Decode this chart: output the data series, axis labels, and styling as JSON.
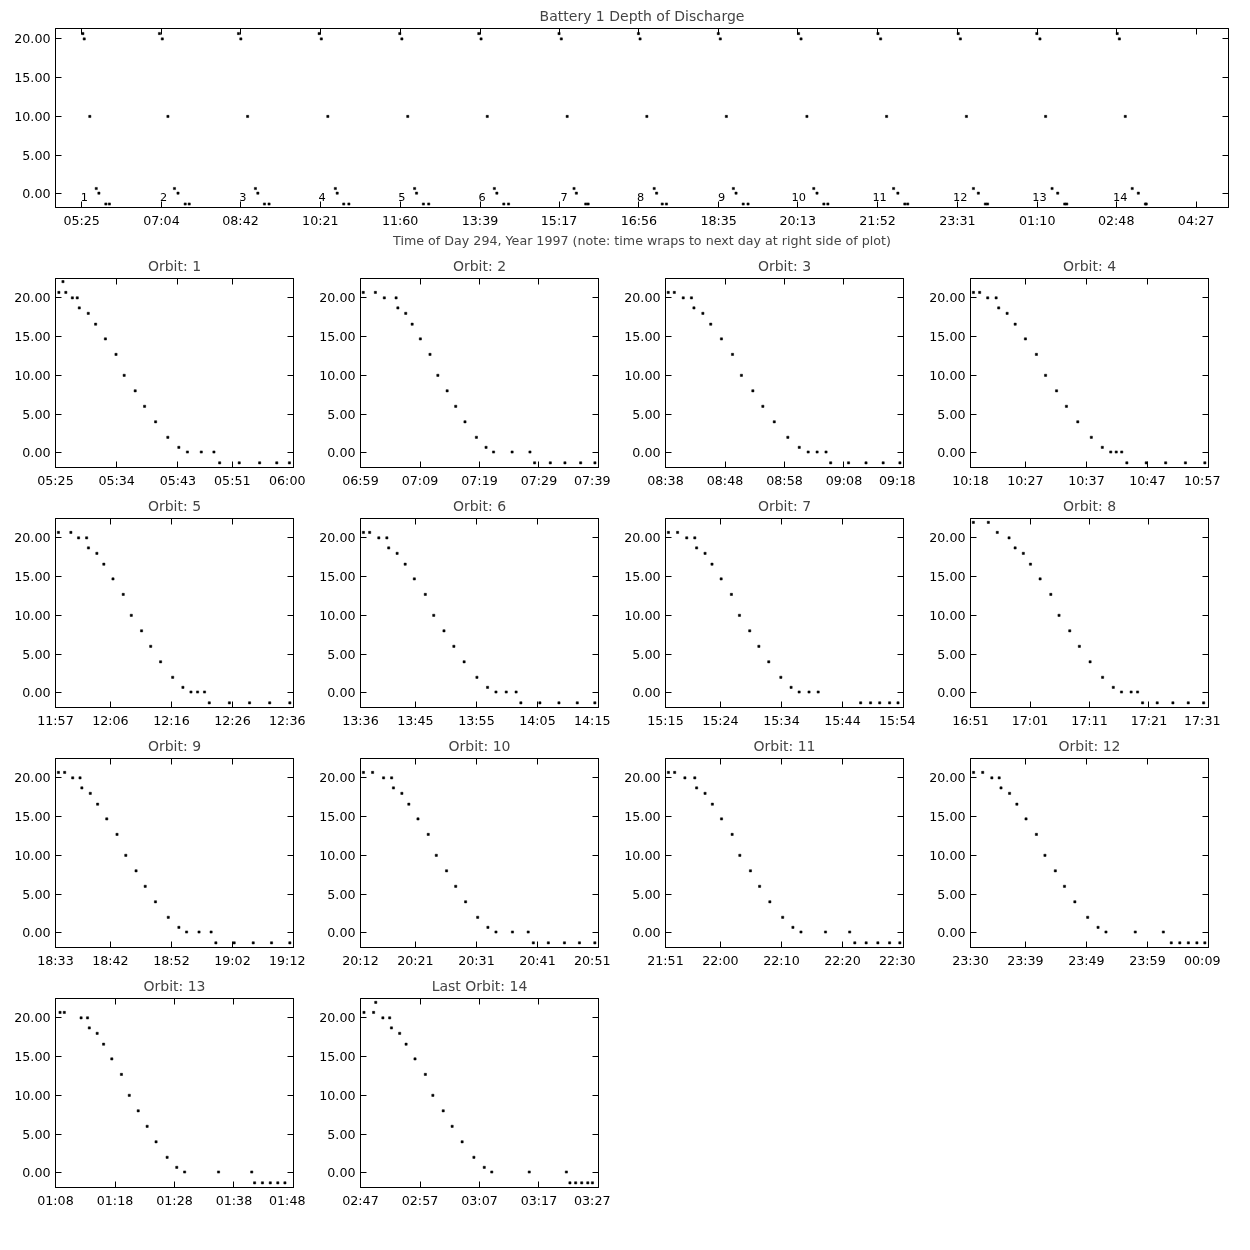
{
  "chart_data": [
    {
      "type": "scatter",
      "title": "Battery 1 Depth of Discharge",
      "xlabel": "Time of Day 294, Year 1997 (note: time wraps to next day at right side of plot)",
      "color": "#000000",
      "marker": "square",
      "xlim": [
        "1997-10-21T04:52:34",
        "1997-10-22T05:07:12"
      ],
      "ylim": [
        -1.75,
        21.35
      ],
      "xticks": [
        {
          "value": "1997-10-21T05:25",
          "label": "05:25"
        },
        {
          "value": "1997-10-21T07:04",
          "label": "07:04"
        },
        {
          "value": "1997-10-21T08:42",
          "label": "08:42"
        },
        {
          "value": "1997-10-21T10:21",
          "label": "10:21"
        },
        {
          "value": "1997-10-21T12:00",
          "label": "11:60"
        },
        {
          "value": "1997-10-21T13:39",
          "label": "13:39"
        },
        {
          "value": "1997-10-21T15:17",
          "label": "15:17"
        },
        {
          "value": "1997-10-21T16:56",
          "label": "16:56"
        },
        {
          "value": "1997-10-21T18:35",
          "label": "18:35"
        },
        {
          "value": "1997-10-21T20:13",
          "label": "20:13"
        },
        {
          "value": "1997-10-21T21:52",
          "label": "21:52"
        },
        {
          "value": "1997-10-21T23:31",
          "label": "23:31"
        },
        {
          "value": "1997-10-22T01:10",
          "label": "01:10"
        },
        {
          "value": "1997-10-22T02:48",
          "label": "02:48"
        },
        {
          "value": "1997-10-22T04:27",
          "label": "04:27"
        }
      ],
      "yticks": [
        {
          "value": 0,
          "label": "0.00"
        },
        {
          "value": 5,
          "label": "5.00"
        },
        {
          "value": 10,
          "label": "10.00"
        },
        {
          "value": 15,
          "label": "15.00"
        },
        {
          "value": 20,
          "label": "20.00"
        }
      ],
      "annotations": [
        {
          "text": "1",
          "x": "1997-10-21T05:55:00",
          "y": -1.3
        },
        {
          "text": "2",
          "x": "1997-10-21T07:33:24",
          "y": -1.3
        },
        {
          "text": "3",
          "x": "1997-10-21T09:11:42",
          "y": -1.3
        },
        {
          "text": "4",
          "x": "1997-10-21T10:50:00",
          "y": -1.3
        },
        {
          "text": "5",
          "x": "1997-10-21T12:28:48",
          "y": -1.3
        },
        {
          "text": "6",
          "x": "1997-10-21T14:08:30",
          "y": -1.3
        },
        {
          "text": "7",
          "x": "1997-10-21T15:50:06",
          "y": -1.3
        },
        {
          "text": "8",
          "x": "1997-10-21T17:25:00",
          "y": -1.3
        },
        {
          "text": "9",
          "x": "1997-10-21T19:05:24",
          "y": -1.3
        },
        {
          "text": "10",
          "x": "1997-10-21T20:45:24",
          "y": -1.3
        },
        {
          "text": "11",
          "x": "1997-10-21T22:25:48",
          "y": -1.3
        },
        {
          "text": "12",
          "x": "1997-10-22T00:05:42",
          "y": -1.3
        },
        {
          "text": "13",
          "x": "1997-10-22T01:44:06",
          "y": -1.3
        },
        {
          "text": "14",
          "x": "1997-10-22T03:24:12",
          "y": -1.3
        }
      ],
      "x": [
        "1997-10-21T05:26:30",
        "1997-10-21T05:28:12",
        "1997-10-21T05:35:06",
        "1997-10-21T05:43:06",
        "1997-10-21T05:46:24",
        "1997-10-21T05:55:00",
        "1997-10-21T05:59:24",
        "1997-10-21T07:01:30",
        "1997-10-21T07:05:00",
        "1997-10-21T07:12:00",
        "1997-10-21T07:20:06",
        "1997-10-21T07:24:30",
        "1997-10-21T07:33:24",
        "1997-10-21T07:38:24",
        "1997-10-21T08:39:30",
        "1997-10-21T08:42:24",
        "1997-10-21T08:50:48",
        "1997-10-21T09:00:30",
        "1997-10-21T09:03:30",
        "1997-10-21T09:11:42",
        "1997-10-21T09:17:24",
        "1997-10-21T10:19:30",
        "1997-10-21T10:22:12",
        "1997-10-21T10:30:18",
        "1997-10-21T10:39:36",
        "1997-10-21T10:41:54",
        "1997-10-21T10:50:00",
        "1997-10-21T10:56:24",
        "1997-10-21T11:59:30",
        "1997-10-21T12:02:06",
        "1997-10-21T12:09:24",
        "1997-10-21T12:17:54",
        "1997-10-21T12:20:18",
        "1997-10-21T12:28:48",
        "1997-10-21T12:35:24",
        "1997-10-21T13:37:30",
        "1997-10-21T13:40:18",
        "1997-10-21T13:48:00",
        "1997-10-21T13:56:48",
        "1997-10-21T13:59:54",
        "1997-10-21T14:08:30",
        "1997-10-21T14:14:24",
        "1997-10-21T15:17:00",
        "1997-10-21T15:19:48",
        "1997-10-21T15:27:06",
        "1997-10-21T15:35:36",
        "1997-10-21T15:38:30",
        "1997-10-21T15:50:06",
        "1997-10-21T15:53:06",
        "1997-10-21T16:55:30",
        "1997-10-21T16:57:30",
        "1997-10-21T17:05:54",
        "1997-10-21T17:15:00",
        "1997-10-21T17:18:00",
        "1997-10-21T17:25:00",
        "1997-10-21T17:30:12",
        "1997-10-21T18:34:30",
        "1997-10-21T18:37:00",
        "1997-10-21T18:44:30",
        "1997-10-21T18:53:12",
        "1997-10-21T18:56:30",
        "1997-10-21T19:05:24",
        "1997-10-21T19:11:24",
        "1997-10-21T20:14:00",
        "1997-10-21T20:17:06",
        "1997-10-21T20:24:24",
        "1997-10-21T20:32:54",
        "1997-10-21T20:36:54",
        "1997-10-21T20:45:24",
        "1997-10-21T20:50:24",
        "1997-10-21T21:52:30",
        "1997-10-21T21:55:48",
        "1997-10-21T22:03:12",
        "1997-10-21T22:11:54",
        "1997-10-21T22:17:12",
        "1997-10-21T22:25:48",
        "1997-10-21T22:29:24",
        "1997-10-21T23:32:00",
        "1997-10-21T23:34:42",
        "1997-10-21T23:42:12",
        "1997-10-21T23:50:54",
        "1997-10-21T23:57:00",
        "1997-10-22T00:05:42",
        "1997-10-22T00:08:24",
        "1997-10-22T01:09:30",
        "1997-10-22T01:13:24",
        "1997-10-22T01:20:24",
        "1997-10-22T01:28:24",
        "1997-10-22T01:35:24",
        "1997-10-22T01:44:06",
        "1997-10-22T01:46:36",
        "1997-10-22T02:49:12",
        "1997-10-22T02:51:54",
        "1997-10-22T02:59:12",
        "1997-10-22T03:07:48",
        "1997-10-22T03:15:24",
        "1997-10-22T03:24:12",
        "1997-10-22T03:25:12"
      ],
      "values": [
        20.7,
        20.0,
        10.0,
        0.7,
        0.1,
        -1.3,
        -1.3,
        20.7,
        20.0,
        10.0,
        0.7,
        0.1,
        -1.3,
        -1.3,
        20.7,
        20.0,
        10.0,
        0.7,
        0.1,
        -1.3,
        -1.3,
        20.7,
        20.0,
        10.0,
        0.7,
        0.1,
        -1.3,
        -1.3,
        20.7,
        20.0,
        10.0,
        0.7,
        0.1,
        -1.3,
        -1.3,
        20.7,
        20.0,
        10.0,
        0.7,
        0.1,
        -1.3,
        -1.3,
        20.7,
        20.0,
        10.0,
        0.7,
        0.1,
        -1.3,
        -1.3,
        20.7,
        20.0,
        10.0,
        0.7,
        0.1,
        -1.3,
        -1.3,
        20.7,
        20.0,
        10.0,
        0.7,
        0.1,
        -1.3,
        -1.3,
        20.7,
        20.0,
        10.0,
        0.7,
        0.1,
        -1.3,
        -1.3,
        20.7,
        20.0,
        10.0,
        0.7,
        0.1,
        -1.3,
        -1.3,
        20.7,
        20.0,
        10.0,
        0.7,
        0.1,
        -1.3,
        -1.3,
        20.7,
        20.0,
        10.0,
        0.7,
        0.1,
        -1.3,
        -1.3,
        20.7,
        20.0,
        10.0,
        0.7,
        0.1,
        -1.3,
        -1.3
      ]
    },
    {
      "type": "scatter",
      "title": "Orbit: 1",
      "color": "#000000",
      "marker": "square",
      "xlim": [
        5.4167,
        6.0
      ],
      "ylim": [
        -1.9,
        22.5
      ],
      "xticks": [
        {
          "value": 5.4167,
          "label": "05:25"
        },
        {
          "value": 5.5667,
          "label": "05:34"
        },
        {
          "value": 5.7167,
          "label": "05:43"
        },
        {
          "value": 5.85,
          "label": "05:51"
        },
        {
          "value": 6.0,
          "label": "06:00"
        }
      ],
      "yticks": [
        {
          "value": 0,
          "label": "0.00"
        },
        {
          "value": 5,
          "label": "5.00"
        },
        {
          "value": 10,
          "label": "10.00"
        },
        {
          "value": 15,
          "label": "15.00"
        },
        {
          "value": 20,
          "label": "20.00"
        }
      ],
      "x": [
        5.425,
        5.442,
        5.458,
        5.47,
        5.475,
        5.497,
        5.515,
        5.539,
        5.565,
        5.585,
        5.612,
        5.635,
        5.662,
        5.692,
        5.719,
        5.74,
        5.774,
        5.805,
        5.819,
        5.867,
        5.917,
        5.959,
        5.99,
        5.435
      ],
      "values": [
        20.7,
        20.7,
        20.0,
        20.0,
        18.7,
        18.0,
        16.6,
        14.7,
        12.7,
        10.0,
        8.0,
        6.0,
        4.0,
        2.0,
        0.7,
        0.1,
        0.1,
        0.1,
        -1.3,
        -1.3,
        -1.3,
        -1.3,
        -1.3,
        22.1
      ]
    },
    {
      "type": "scatter",
      "title": "Orbit: 2",
      "color": "#000000",
      "marker": "square",
      "xlim": [
        6.9833,
        7.65
      ],
      "ylim": [
        -1.9,
        22.5
      ],
      "xticks": [
        {
          "value": 6.9833,
          "label": "06:59"
        },
        {
          "value": 7.15,
          "label": "07:09"
        },
        {
          "value": 7.3167,
          "label": "07:19"
        },
        {
          "value": 7.4833,
          "label": "07:29"
        },
        {
          "value": 7.65,
          "label": "07:39"
        }
      ],
      "yticks": [
        {
          "value": 0,
          "label": "0.00"
        },
        {
          "value": 5,
          "label": "5.00"
        },
        {
          "value": 10,
          "label": "10.00"
        },
        {
          "value": 15,
          "label": "15.00"
        },
        {
          "value": 20,
          "label": "20.00"
        }
      ],
      "x": [
        6.991,
        7.025,
        7.05,
        7.083,
        7.088,
        7.11,
        7.128,
        7.151,
        7.178,
        7.2,
        7.226,
        7.25,
        7.276,
        7.308,
        7.335,
        7.356,
        7.408,
        7.458,
        7.471,
        7.515,
        7.556,
        7.6,
        7.64
      ],
      "values": [
        20.7,
        20.7,
        20.0,
        20.0,
        18.7,
        18.0,
        16.6,
        14.7,
        12.7,
        10.0,
        8.0,
        6.0,
        4.0,
        2.0,
        0.7,
        0.1,
        0.1,
        0.1,
        -1.3,
        -1.3,
        -1.3,
        -1.3,
        -1.3
      ]
    },
    {
      "type": "scatter",
      "title": "Orbit: 3",
      "color": "#000000",
      "marker": "square",
      "xlim": [
        8.6333,
        9.3
      ],
      "ylim": [
        -1.9,
        22.5
      ],
      "xticks": [
        {
          "value": 8.6333,
          "label": "08:38"
        },
        {
          "value": 8.8,
          "label": "08:48"
        },
        {
          "value": 8.9667,
          "label": "08:58"
        },
        {
          "value": 9.1333,
          "label": "09:08"
        },
        {
          "value": 9.3,
          "label": "09:18"
        }
      ],
      "yticks": [
        {
          "value": 0,
          "label": "0.00"
        },
        {
          "value": 5,
          "label": "5.00"
        },
        {
          "value": 10,
          "label": "10.00"
        },
        {
          "value": 15,
          "label": "15.00"
        },
        {
          "value": 20,
          "label": "20.00"
        }
      ],
      "x": [
        8.641,
        8.658,
        8.683,
        8.706,
        8.713,
        8.738,
        8.76,
        8.79,
        8.821,
        8.846,
        8.878,
        8.906,
        8.938,
        8.976,
        9.008,
        9.033,
        9.058,
        9.083,
        9.096,
        9.146,
        9.195,
        9.243,
        9.29
      ],
      "values": [
        20.7,
        20.7,
        20.0,
        20.0,
        18.7,
        18.0,
        16.6,
        14.7,
        12.7,
        10.0,
        8.0,
        6.0,
        4.0,
        2.0,
        0.7,
        0.1,
        0.1,
        0.1,
        -1.3,
        -1.3,
        -1.3,
        -1.3,
        -1.3
      ]
    },
    {
      "type": "scatter",
      "title": "Orbit: 4",
      "color": "#000000",
      "marker": "square",
      "xlim": [
        10.3,
        10.95
      ],
      "ylim": [
        -1.9,
        22.5
      ],
      "xticks": [
        {
          "value": 10.3,
          "label": "10:18"
        },
        {
          "value": 10.45,
          "label": "10:27"
        },
        {
          "value": 10.6167,
          "label": "10:37"
        },
        {
          "value": 10.7833,
          "label": "10:47"
        },
        {
          "value": 10.95,
          "label": "10:57"
        }
      ],
      "yticks": [
        {
          "value": 0,
          "label": "0.00"
        },
        {
          "value": 5,
          "label": "5.00"
        },
        {
          "value": 10,
          "label": "10.00"
        },
        {
          "value": 15,
          "label": "15.00"
        },
        {
          "value": 20,
          "label": "20.00"
        }
      ],
      "x": [
        10.308,
        10.325,
        10.347,
        10.37,
        10.377,
        10.4,
        10.422,
        10.45,
        10.48,
        10.505,
        10.535,
        10.562,
        10.593,
        10.63,
        10.66,
        10.683,
        10.698,
        10.713,
        10.727,
        10.78,
        10.833,
        10.887,
        10.94
      ],
      "values": [
        20.7,
        20.7,
        20.0,
        20.0,
        18.7,
        18.0,
        16.6,
        14.7,
        12.7,
        10.0,
        8.0,
        6.0,
        4.0,
        2.0,
        0.7,
        0.1,
        0.1,
        0.1,
        -1.3,
        -1.3,
        -1.3,
        -1.3,
        -1.3
      ]
    },
    {
      "type": "scatter",
      "title": "Orbit: 5",
      "color": "#000000",
      "marker": "square",
      "xlim": [
        11.95,
        12.6
      ],
      "ylim": [
        -1.9,
        22.5
      ],
      "xticks": [
        {
          "value": 11.95,
          "label": "11:57"
        },
        {
          "value": 12.1,
          "label": "12:06"
        },
        {
          "value": 12.2667,
          "label": "12:16"
        },
        {
          "value": 12.4333,
          "label": "12:26"
        },
        {
          "value": 12.6,
          "label": "12:36"
        }
      ],
      "yticks": [
        {
          "value": 0,
          "label": "0.00"
        },
        {
          "value": 5,
          "label": "5.00"
        },
        {
          "value": 10,
          "label": "10.00"
        },
        {
          "value": 15,
          "label": "15.00"
        },
        {
          "value": 20,
          "label": "20.00"
        }
      ],
      "x": [
        11.958,
        11.992,
        12.013,
        12.035,
        12.04,
        12.063,
        12.082,
        12.107,
        12.135,
        12.157,
        12.185,
        12.21,
        12.237,
        12.27,
        12.298,
        12.32,
        12.338,
        12.357,
        12.37,
        12.425,
        12.48,
        12.535,
        12.59
      ],
      "values": [
        20.7,
        20.7,
        20.0,
        20.0,
        18.7,
        18.0,
        16.6,
        14.7,
        12.7,
        10.0,
        8.0,
        6.0,
        4.0,
        2.0,
        0.7,
        0.1,
        0.1,
        0.1,
        -1.3,
        -1.3,
        -1.3,
        -1.3,
        -1.3
      ]
    },
    {
      "type": "scatter",
      "title": "Orbit: 6",
      "color": "#000000",
      "marker": "square",
      "xlim": [
        13.6,
        14.25
      ],
      "ylim": [
        -1.9,
        22.5
      ],
      "xticks": [
        {
          "value": 13.6,
          "label": "13:36"
        },
        {
          "value": 13.75,
          "label": "13:45"
        },
        {
          "value": 13.9167,
          "label": "13:55"
        },
        {
          "value": 14.0833,
          "label": "14:05"
        },
        {
          "value": 14.25,
          "label": "14:15"
        }
      ],
      "yticks": [
        {
          "value": 0,
          "label": "0.00"
        },
        {
          "value": 5,
          "label": "5.00"
        },
        {
          "value": 10,
          "label": "10.00"
        },
        {
          "value": 15,
          "label": "15.00"
        },
        {
          "value": 20,
          "label": "20.00"
        }
      ],
      "x": [
        13.608,
        13.625,
        13.65,
        13.672,
        13.677,
        13.7,
        13.722,
        13.747,
        13.777,
        13.8,
        13.828,
        13.855,
        13.883,
        13.918,
        13.947,
        13.97,
        13.998,
        14.025,
        14.038,
        14.09,
        14.142,
        14.192,
        14.24
      ],
      "values": [
        20.7,
        20.7,
        20.0,
        20.0,
        18.7,
        18.0,
        16.6,
        14.7,
        12.7,
        10.0,
        8.0,
        6.0,
        4.0,
        2.0,
        0.7,
        0.1,
        0.1,
        0.1,
        -1.3,
        -1.3,
        -1.3,
        -1.3,
        -1.3
      ]
    },
    {
      "type": "scatter",
      "title": "Orbit: 7",
      "color": "#000000",
      "marker": "square",
      "xlim": [
        15.25,
        15.9
      ],
      "ylim": [
        -1.9,
        22.5
      ],
      "xticks": [
        {
          "value": 15.25,
          "label": "15:15"
        },
        {
          "value": 15.4,
          "label": "15:24"
        },
        {
          "value": 15.5667,
          "label": "15:34"
        },
        {
          "value": 15.7333,
          "label": "15:44"
        },
        {
          "value": 15.9,
          "label": "15:54"
        }
      ],
      "yticks": [
        {
          "value": 0,
          "label": "0.00"
        },
        {
          "value": 5,
          "label": "5.00"
        },
        {
          "value": 10,
          "label": "10.00"
        },
        {
          "value": 15,
          "label": "15.00"
        },
        {
          "value": 20,
          "label": "20.00"
        }
      ],
      "x": [
        15.258,
        15.283,
        15.308,
        15.33,
        15.335,
        15.358,
        15.377,
        15.402,
        15.43,
        15.452,
        15.48,
        15.505,
        15.532,
        15.565,
        15.593,
        15.615,
        15.642,
        15.667,
        15.783,
        15.81,
        15.835,
        15.862,
        15.885
      ],
      "values": [
        20.7,
        20.7,
        20.0,
        20.0,
        18.7,
        18.0,
        16.6,
        14.7,
        12.7,
        10.0,
        8.0,
        6.0,
        4.0,
        2.0,
        0.7,
        0.1,
        0.1,
        0.1,
        -1.3,
        -1.3,
        -1.3,
        -1.3,
        -1.3
      ]
    },
    {
      "type": "scatter",
      "title": "Orbit: 8",
      "color": "#000000",
      "marker": "square",
      "xlim": [
        16.85,
        17.5167
      ],
      "ylim": [
        -1.9,
        22.5
      ],
      "xticks": [
        {
          "value": 16.85,
          "label": "16:51"
        },
        {
          "value": 17.0167,
          "label": "17:01"
        },
        {
          "value": 17.1833,
          "label": "17:11"
        },
        {
          "value": 17.35,
          "label": "17:21"
        },
        {
          "value": 17.5167,
          "label": "17:31"
        }
      ],
      "yticks": [
        {
          "value": 0,
          "label": "0.00"
        },
        {
          "value": 5,
          "label": "5.00"
        },
        {
          "value": 10,
          "label": "10.00"
        },
        {
          "value": 15,
          "label": "15.00"
        },
        {
          "value": 20,
          "label": "20.00"
        }
      ],
      "x": [
        16.858,
        16.9,
        16.925,
        16.958,
        16.975,
        16.998,
        17.018,
        17.045,
        17.075,
        17.098,
        17.128,
        17.155,
        17.185,
        17.22,
        17.25,
        17.273,
        17.3,
        17.318,
        17.332,
        17.373,
        17.417,
        17.46,
        17.503
      ],
      "values": [
        22.0,
        22.0,
        20.7,
        20.0,
        18.7,
        18.0,
        16.6,
        14.7,
        12.7,
        10.0,
        8.0,
        6.0,
        4.0,
        2.0,
        0.7,
        0.1,
        0.1,
        0.1,
        -1.3,
        -1.3,
        -1.3,
        -1.3,
        -1.3
      ]
    },
    {
      "type": "scatter",
      "title": "Orbit: 9",
      "color": "#000000",
      "marker": "square",
      "xlim": [
        18.55,
        19.2
      ],
      "ylim": [
        -1.9,
        22.5
      ],
      "xticks": [
        {
          "value": 18.55,
          "label": "18:33"
        },
        {
          "value": 18.7,
          "label": "18:42"
        },
        {
          "value": 18.8667,
          "label": "18:52"
        },
        {
          "value": 19.0333,
          "label": "19:02"
        },
        {
          "value": 19.2,
          "label": "19:12"
        }
      ],
      "yticks": [
        {
          "value": 0,
          "label": "0.00"
        },
        {
          "value": 5,
          "label": "5.00"
        },
        {
          "value": 10,
          "label": "10.00"
        },
        {
          "value": 15,
          "label": "15.00"
        },
        {
          "value": 20,
          "label": "20.00"
        }
      ],
      "x": [
        18.558,
        18.575,
        18.597,
        18.617,
        18.622,
        18.645,
        18.665,
        18.69,
        18.718,
        18.742,
        18.77,
        18.795,
        18.823,
        18.858,
        18.887,
        18.908,
        18.942,
        18.975,
        18.988,
        19.038,
        19.09,
        19.14,
        19.19
      ],
      "values": [
        20.7,
        20.7,
        20.0,
        20.0,
        18.7,
        18.0,
        16.6,
        14.7,
        12.7,
        10.0,
        8.0,
        6.0,
        4.0,
        2.0,
        0.7,
        0.1,
        0.1,
        0.1,
        -1.3,
        -1.3,
        -1.3,
        -1.3,
        -1.3
      ]
    },
    {
      "type": "scatter",
      "title": "Orbit: 10",
      "color": "#000000",
      "marker": "square",
      "xlim": [
        20.2,
        20.85
      ],
      "ylim": [
        -1.9,
        22.5
      ],
      "xticks": [
        {
          "value": 20.2,
          "label": "20:12"
        },
        {
          "value": 20.35,
          "label": "20:21"
        },
        {
          "value": 20.5167,
          "label": "20:31"
        },
        {
          "value": 20.6833,
          "label": "20:41"
        },
        {
          "value": 20.85,
          "label": "20:51"
        }
      ],
      "yticks": [
        {
          "value": 0,
          "label": "0.00"
        },
        {
          "value": 5,
          "label": "5.00"
        },
        {
          "value": 10,
          "label": "10.00"
        },
        {
          "value": 15,
          "label": "15.00"
        },
        {
          "value": 20,
          "label": "20.00"
        }
      ],
      "x": [
        20.208,
        20.233,
        20.263,
        20.285,
        20.29,
        20.313,
        20.332,
        20.357,
        20.385,
        20.407,
        20.435,
        20.46,
        20.487,
        20.52,
        20.548,
        20.57,
        20.615,
        20.658,
        20.672,
        20.713,
        20.757,
        20.798,
        20.84
      ],
      "values": [
        20.7,
        20.7,
        20.0,
        20.0,
        18.7,
        18.0,
        16.6,
        14.7,
        12.7,
        10.0,
        8.0,
        6.0,
        4.0,
        2.0,
        0.7,
        0.1,
        0.1,
        0.1,
        -1.3,
        -1.3,
        -1.3,
        -1.3,
        -1.3
      ]
    },
    {
      "type": "scatter",
      "title": "Orbit: 11",
      "color": "#000000",
      "marker": "square",
      "xlim": [
        21.85,
        22.5
      ],
      "ylim": [
        -1.9,
        22.5
      ],
      "xticks": [
        {
          "value": 21.85,
          "label": "21:51"
        },
        {
          "value": 22.0,
          "label": "22:00"
        },
        {
          "value": 22.1667,
          "label": "22:10"
        },
        {
          "value": 22.3333,
          "label": "22:20"
        },
        {
          "value": 22.5,
          "label": "22:30"
        }
      ],
      "yticks": [
        {
          "value": 0,
          "label": "0.00"
        },
        {
          "value": 5,
          "label": "5.00"
        },
        {
          "value": 10,
          "label": "10.00"
        },
        {
          "value": 15,
          "label": "15.00"
        },
        {
          "value": 20,
          "label": "20.00"
        }
      ],
      "x": [
        21.858,
        21.875,
        21.903,
        21.93,
        21.935,
        21.958,
        21.978,
        22.003,
        22.032,
        22.053,
        22.082,
        22.107,
        22.135,
        22.17,
        22.198,
        22.22,
        22.287,
        22.353,
        22.367,
        22.398,
        22.43,
        22.462,
        22.49
      ],
      "values": [
        20.7,
        20.7,
        20.0,
        20.0,
        18.7,
        18.0,
        16.6,
        14.7,
        12.7,
        10.0,
        8.0,
        6.0,
        4.0,
        2.0,
        0.7,
        0.1,
        0.1,
        0.1,
        -1.3,
        -1.3,
        -1.3,
        -1.3,
        -1.3
      ]
    },
    {
      "type": "scatter",
      "title": "Orbit: 12",
      "color": "#000000",
      "marker": "square",
      "xlim": [
        "1997-10-21T23:30",
        "1997-10-22T00:09"
      ],
      "ylim": [
        -1.9,
        22.5
      ],
      "xticks": [
        {
          "value": "1997-10-21T23:30",
          "label": "23:30"
        },
        {
          "value": "1997-10-21T23:39",
          "label": "23:39"
        },
        {
          "value": "1997-10-21T23:49",
          "label": "23:49"
        },
        {
          "value": "1997-10-21T23:59",
          "label": "23:59"
        },
        {
          "value": "1997-10-22T00:09",
          "label": "00:09"
        }
      ],
      "yticks": [
        {
          "value": 0,
          "label": "0.00"
        },
        {
          "value": 5,
          "label": "5.00"
        },
        {
          "value": 10,
          "label": "10.00"
        },
        {
          "value": 15,
          "label": "15.00"
        },
        {
          "value": 20,
          "label": "20.00"
        }
      ],
      "x": [
        "1997-10-21T23:30:30",
        "1997-10-21T23:32:00",
        "1997-10-21T23:33:30",
        "1997-10-21T23:34:42",
        "1997-10-21T23:35:00",
        "1997-10-21T23:36:24",
        "1997-10-21T23:37:36",
        "1997-10-21T23:39:06",
        "1997-10-21T23:40:48",
        "1997-10-21T23:42:12",
        "1997-10-21T23:43:54",
        "1997-10-21T23:45:24",
        "1997-10-21T23:47:06",
        "1997-10-21T23:49:12",
        "1997-10-21T23:50:54",
        "1997-10-21T23:52:12",
        "1997-10-21T23:57:00",
        "1997-10-22T00:01:36",
        "1997-10-22T00:02:54",
        "1997-10-22T00:04:18",
        "1997-10-22T00:05:42",
        "1997-10-22T00:07:06",
        "1997-10-22T00:08:24"
      ],
      "values": [
        20.7,
        20.7,
        20.0,
        20.0,
        18.7,
        18.0,
        16.6,
        14.7,
        12.7,
        10.0,
        8.0,
        6.0,
        4.0,
        2.0,
        0.7,
        0.1,
        0.1,
        0.1,
        -1.3,
        -1.3,
        -1.3,
        -1.3,
        -1.3
      ]
    },
    {
      "type": "scatter",
      "title": "Orbit: 13",
      "color": "#000000",
      "marker": "square",
      "xlim": [
        1.1333,
        1.8
      ],
      "ylim": [
        -1.9,
        22.5
      ],
      "xticks": [
        {
          "value": 1.1333,
          "label": "01:08"
        },
        {
          "value": 1.3,
          "label": "01:18"
        },
        {
          "value": 1.4667,
          "label": "01:28"
        },
        {
          "value": 1.6333,
          "label": "01:38"
        },
        {
          "value": 1.8,
          "label": "01:48"
        }
      ],
      "yticks": [
        {
          "value": 0,
          "label": "0.00"
        },
        {
          "value": 5,
          "label": "5.00"
        },
        {
          "value": 10,
          "label": "10.00"
        },
        {
          "value": 15,
          "label": "15.00"
        },
        {
          "value": 20,
          "label": "20.00"
        }
      ],
      "x": [
        1.146,
        1.158,
        1.205,
        1.223,
        1.228,
        1.25,
        1.268,
        1.291,
        1.318,
        1.34,
        1.365,
        1.39,
        1.415,
        1.446,
        1.473,
        1.495,
        1.59,
        1.683,
        1.691,
        1.713,
        1.735,
        1.756,
        1.776
      ],
      "values": [
        20.7,
        20.7,
        20.0,
        20.0,
        18.7,
        18.0,
        16.6,
        14.7,
        12.7,
        10.0,
        8.0,
        6.0,
        4.0,
        2.0,
        0.7,
        0.1,
        0.1,
        0.1,
        -1.3,
        -1.3,
        -1.3,
        -1.3,
        -1.3
      ]
    },
    {
      "type": "scatter",
      "title": "Last Orbit: 14",
      "color": "#000000",
      "marker": "square",
      "xlim": [
        2.7833,
        3.45
      ],
      "ylim": [
        -1.9,
        22.5
      ],
      "xticks": [
        {
          "value": 2.7833,
          "label": "02:47"
        },
        {
          "value": 2.95,
          "label": "02:57"
        },
        {
          "value": 3.1167,
          "label": "03:07"
        },
        {
          "value": 3.2833,
          "label": "03:17"
        },
        {
          "value": 3.45,
          "label": "03:27"
        }
      ],
      "yticks": [
        {
          "value": 0,
          "label": "0.00"
        },
        {
          "value": 5,
          "label": "5.00"
        },
        {
          "value": 10,
          "label": "10.00"
        },
        {
          "value": 15,
          "label": "15.00"
        },
        {
          "value": 20,
          "label": "20.00"
        }
      ],
      "x": [
        2.793,
        2.82,
        2.846,
        2.865,
        2.87,
        2.893,
        2.911,
        2.936,
        2.965,
        2.986,
        3.015,
        3.04,
        3.068,
        3.101,
        3.13,
        3.151,
        3.256,
        3.36,
        3.37,
        3.386,
        3.403,
        3.42,
        3.433,
        2.826
      ],
      "values": [
        20.7,
        20.7,
        20.0,
        20.0,
        18.7,
        18.0,
        16.6,
        14.7,
        12.7,
        10.0,
        8.0,
        6.0,
        4.0,
        2.0,
        0.7,
        0.1,
        0.1,
        0.1,
        -1.3,
        -1.3,
        -1.3,
        -1.3,
        -1.3,
        22.0
      ]
    }
  ]
}
